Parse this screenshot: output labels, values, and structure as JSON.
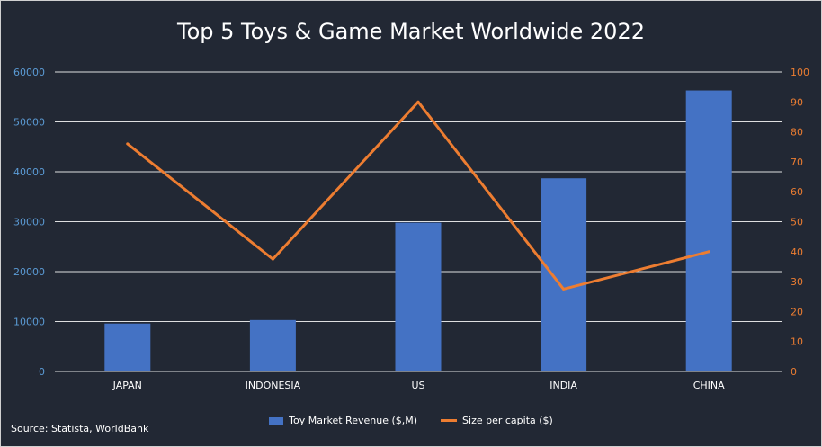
{
  "chart_data": {
    "type": "bar+line",
    "title": "Top 5 Toys & Game Market Worldwide 2022",
    "source": "Source: Statista, WorldBank",
    "categories": [
      "JAPAN",
      "INDONESIA",
      "US",
      "INDIA",
      "CHINA"
    ],
    "series": [
      {
        "name": "Toy Market Revenue ($,M)",
        "type": "bar",
        "axis": "left",
        "color": "#4472c4",
        "values": [
          9600,
          10300,
          29800,
          38700,
          56300
        ]
      },
      {
        "name": "Size per capita ($)",
        "type": "line",
        "axis": "right",
        "color": "#ed7d31",
        "values": [
          76,
          37.5,
          90,
          27.5,
          40
        ]
      }
    ],
    "y_left": {
      "min": 0,
      "max": 60000,
      "ticks": [
        "0",
        "10000",
        "20000",
        "30000",
        "40000",
        "50000",
        "60000"
      ],
      "color": "#5b9bd5"
    },
    "y_right": {
      "min": 0,
      "max": 100,
      "ticks": [
        "0",
        "10",
        "20",
        "30",
        "40",
        "50",
        "60",
        "70",
        "80",
        "90",
        "100"
      ],
      "color": "#ed7d31"
    },
    "grid": true,
    "legend_position": "bottom",
    "background": "#222834",
    "gridline_color": "#ffffff"
  }
}
